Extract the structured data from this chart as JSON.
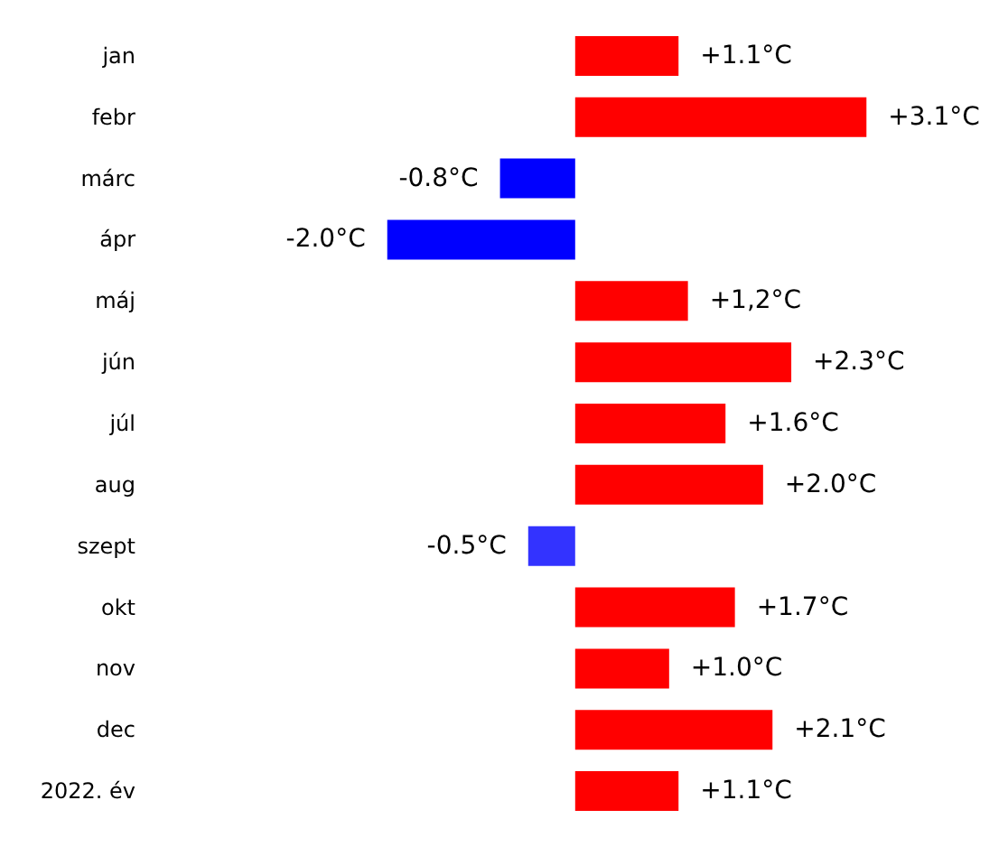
{
  "chart_data": {
    "type": "bar",
    "orientation": "horizontal",
    "categories": [
      "jan",
      "febr",
      "márc",
      "ápr",
      "máj",
      "jún",
      "júl",
      "aug",
      "szept",
      "okt",
      "nov",
      "dec",
      "2022. év"
    ],
    "values": [
      1.1,
      3.1,
      -0.8,
      -2.0,
      1.2,
      2.3,
      1.6,
      2.0,
      -0.5,
      1.7,
      1.0,
      2.1,
      1.1
    ],
    "colors": [
      "#ff0000",
      "#ff0000",
      "#0000ff",
      "#0000ff",
      "#ff0000",
      "#ff0000",
      "#ff0000",
      "#ff0000",
      "#3333ff",
      "#ff0000",
      "#ff0000",
      "#ff0000",
      "#ff0000"
    ],
    "value_labels": [
      "+1.1°C",
      "+3.1°C",
      "-0.8°C",
      "-2.0°C",
      "+1,2°C",
      "+2.3°C",
      "+1.6°C",
      "+2.0°C",
      "-0.5°C",
      "+1.7°C",
      "+1.0°C",
      "+2.1°C",
      "+1.1°C"
    ]
  }
}
